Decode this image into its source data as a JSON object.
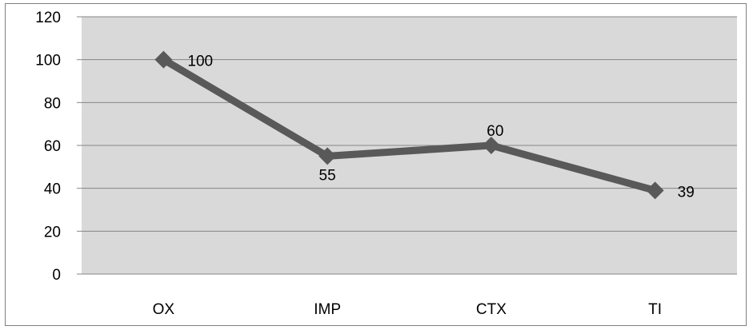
{
  "chart_data": {
    "type": "line",
    "title": "",
    "xlabel": "",
    "ylabel": "",
    "categories": [
      "OX",
      "IMP",
      "CTX",
      "TI"
    ],
    "series": [
      {
        "values": [
          100,
          55,
          60,
          39
        ]
      }
    ],
    "data_labels": [
      "100",
      "55",
      "60",
      "39"
    ],
    "ylim": [
      0,
      120
    ],
    "y_ticks": [
      "0",
      "20",
      "40",
      "60",
      "80",
      "100",
      "120"
    ],
    "grid": true,
    "legend": "none",
    "colors": {
      "plot_background": "#d9d9d9",
      "gridline": "#868686",
      "series_line": "#595959",
      "marker": "#595959"
    }
  }
}
